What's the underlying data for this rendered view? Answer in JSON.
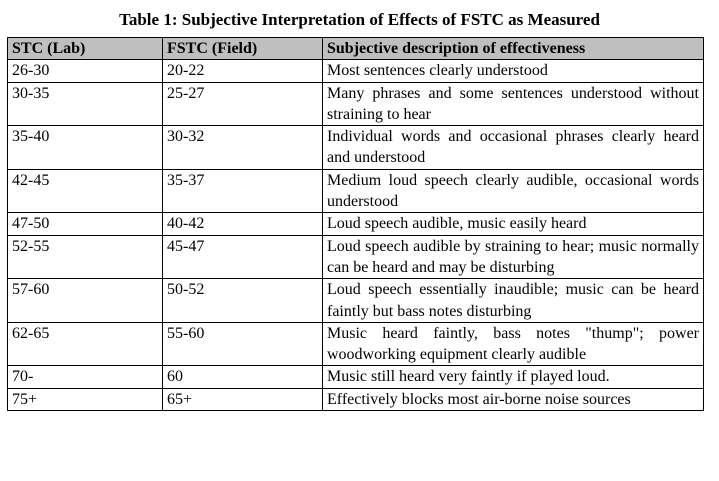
{
  "table": {
    "caption": "Table 1: Subjective Interpretation of Effects of FSTC as Measured",
    "headers": [
      "STC (Lab)",
      "FSTC (Field)",
      "Subjective description of effectiveness"
    ],
    "rows": [
      [
        "26-30",
        "20-22",
        "Most sentences clearly understood"
      ],
      [
        "30-35",
        "25-27",
        "Many phrases and some sentences understood without straining to hear"
      ],
      [
        "35-40",
        "30-32",
        "Individual words and occasional phrases clearly heard and understood"
      ],
      [
        "42-45",
        "35-37",
        "Medium loud speech clearly audible, occasional words understood"
      ],
      [
        "47-50",
        "40-42",
        "Loud speech audible, music easily heard"
      ],
      [
        "52-55",
        "45-47",
        "Loud speech audible by straining to hear; music normally can be heard and may be disturbing"
      ],
      [
        "57-60",
        "50-52",
        "Loud speech essentially inaudible; music can be heard faintly but bass notes disturbing"
      ],
      [
        "62-65",
        "55-60",
        "Music heard faintly, bass notes \"thump\"; power woodworking equipment clearly audible"
      ],
      [
        "70-",
        "60",
        "Music still heard very faintly if played loud."
      ],
      [
        "75+",
        "65+",
        "Effectively blocks most air-borne noise sources"
      ]
    ]
  }
}
